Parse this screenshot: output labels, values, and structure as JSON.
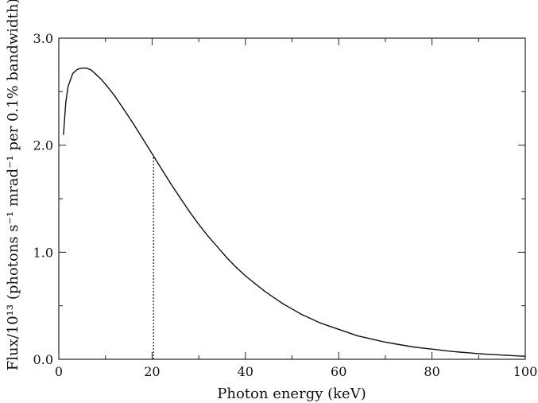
{
  "chart_data": {
    "type": "line",
    "xlabel": "Photon energy (keV)",
    "ylabel": "Flux/10¹³ (photons s⁻¹ mrad⁻¹ per 0.1% bandwidth)",
    "xlim": [
      0,
      100
    ],
    "ylim": [
      0,
      3.0
    ],
    "x_ticks": [
      0,
      20,
      40,
      60,
      80,
      100
    ],
    "x_tick_labels": [
      "0",
      "20",
      "40",
      "60",
      "80",
      "100"
    ],
    "y_ticks": [
      0,
      1.0,
      2.0,
      3.0
    ],
    "y_tick_labels": [
      "0.0",
      "1.0",
      "2.0",
      "3.0"
    ],
    "grid": false,
    "series": [
      {
        "x": [
          1,
          1.5,
          2,
          3,
          4,
          5,
          6,
          7,
          8,
          9,
          10,
          12,
          14,
          16,
          18,
          20,
          22,
          24,
          26,
          28,
          30,
          32,
          34,
          36,
          38,
          40,
          42,
          44,
          46,
          48,
          50,
          52,
          54,
          56,
          58,
          60,
          62,
          64,
          66,
          68,
          70,
          72,
          74,
          76,
          78,
          80,
          82,
          84,
          86,
          88,
          90,
          92,
          94,
          96,
          98,
          100
        ],
        "y": [
          2.1,
          2.4,
          2.55,
          2.67,
          2.71,
          2.72,
          2.72,
          2.7,
          2.66,
          2.62,
          2.57,
          2.46,
          2.33,
          2.2,
          2.06,
          1.92,
          1.78,
          1.64,
          1.51,
          1.38,
          1.26,
          1.15,
          1.05,
          0.95,
          0.86,
          0.78,
          0.71,
          0.64,
          0.58,
          0.52,
          0.47,
          0.42,
          0.38,
          0.34,
          0.31,
          0.28,
          0.25,
          0.22,
          0.2,
          0.18,
          0.16,
          0.145,
          0.13,
          0.115,
          0.105,
          0.095,
          0.085,
          0.075,
          0.067,
          0.06,
          0.053,
          0.047,
          0.042,
          0.037,
          0.032,
          0.028
        ]
      }
    ],
    "annotations": [
      {
        "type": "vertical-dotted-line",
        "x": 20.3,
        "y_from": 0,
        "y_to": 1.9
      }
    ]
  }
}
